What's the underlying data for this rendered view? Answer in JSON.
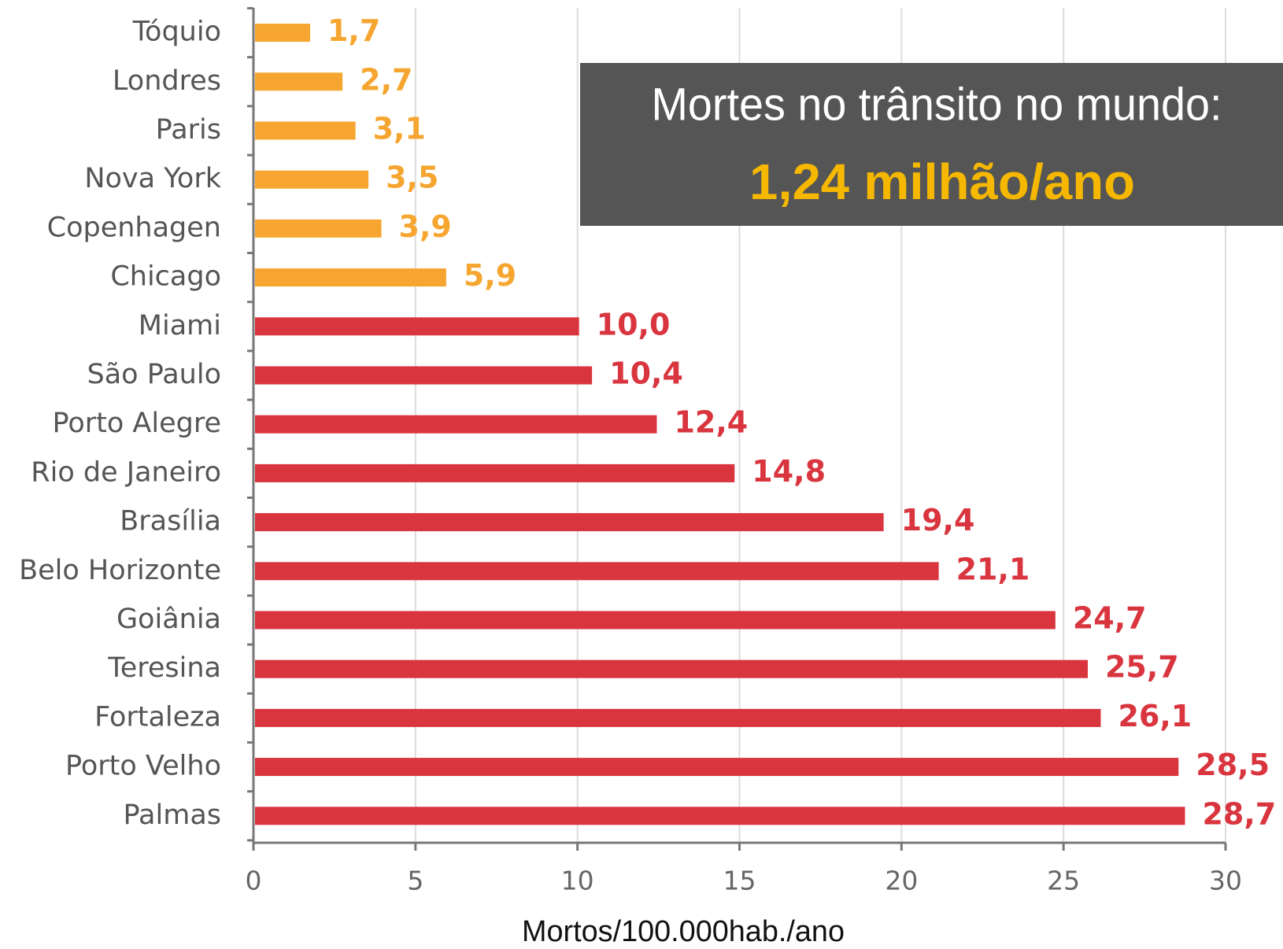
{
  "chart_data": {
    "type": "bar",
    "orientation": "horizontal",
    "categories": [
      "Tóquio",
      "Londres",
      "Paris",
      "Nova York",
      "Copenhagen",
      "Chicago",
      "Miami",
      "São Paulo",
      "Porto Alegre",
      "Rio de Janeiro",
      "Brasília",
      "Belo Horizonte",
      "Goiânia",
      "Teresina",
      "Fortaleza",
      "Porto Velho",
      "Palmas"
    ],
    "values": [
      1.7,
      2.7,
      3.1,
      3.5,
      3.9,
      5.9,
      10.0,
      10.4,
      12.4,
      14.8,
      19.4,
      21.1,
      24.7,
      25.7,
      26.1,
      28.5,
      28.7
    ],
    "value_labels": [
      "1,7",
      "2,7",
      "3,1",
      "3,5",
      "3,9",
      "5,9",
      "10,0",
      "10,4",
      "12,4",
      "14,8",
      "19,4",
      "21,1",
      "24,7",
      "25,7",
      "26,1",
      "28,5",
      "28,7"
    ],
    "colors": [
      "#f6a630",
      "#f6a630",
      "#f6a630",
      "#f6a630",
      "#f6a630",
      "#f6a630",
      "#d9353f",
      "#d9353f",
      "#d9353f",
      "#d9353f",
      "#d9353f",
      "#d9353f",
      "#d9353f",
      "#d9353f",
      "#d9353f",
      "#d9353f",
      "#d9353f"
    ],
    "xlabel": "Mortos/100.000hab./ano",
    "xlim": [
      0,
      30
    ],
    "xticks": [
      0,
      5,
      10,
      15,
      20,
      25,
      30
    ],
    "grid": true,
    "annotation": {
      "title": "Mortes no trânsito no mundo:",
      "value": "1,24 milhão/ano"
    }
  }
}
